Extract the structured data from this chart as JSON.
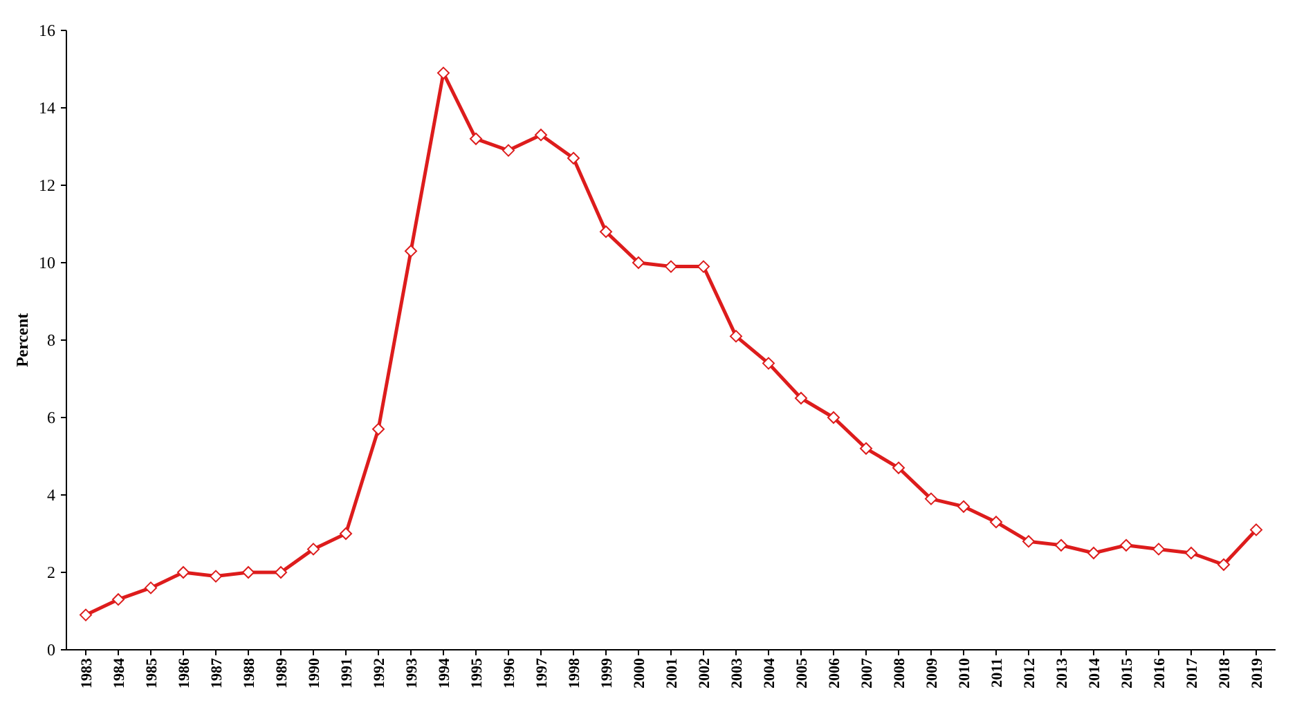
{
  "chart_data": {
    "type": "line",
    "ylabel": "Percent",
    "categories": [
      "1983",
      "1984",
      "1985",
      "1986",
      "1987",
      "1988",
      "1989",
      "1990",
      "1991",
      "1992",
      "1993",
      "1994",
      "1995",
      "1996",
      "1997",
      "1998",
      "1999",
      "2000",
      "2001",
      "2002",
      "2003",
      "2004",
      "2005",
      "2006",
      "2007",
      "2008",
      "2009",
      "2010",
      "2011",
      "2012",
      "2013",
      "2014",
      "2015",
      "2016",
      "2017",
      "2018",
      "2019"
    ],
    "series": [
      {
        "color": "#dd1c1c",
        "values": [
          0.9,
          1.3,
          1.6,
          2.0,
          1.9,
          2.0,
          2.0,
          2.6,
          3.0,
          5.7,
          10.3,
          14.9,
          13.2,
          12.9,
          13.3,
          12.7,
          10.8,
          10.0,
          9.9,
          9.9,
          8.1,
          7.4,
          6.5,
          6.0,
          5.2,
          4.7,
          3.9,
          3.7,
          3.3,
          2.8,
          2.7,
          2.5,
          2.7,
          2.6,
          2.5,
          2.2,
          3.1
        ]
      }
    ],
    "ylim": [
      0,
      16
    ],
    "yticks": [
      0,
      2,
      4,
      6,
      8,
      10,
      12,
      14,
      16
    ],
    "grid": false,
    "marker": "diamond",
    "line_style": "solid"
  }
}
